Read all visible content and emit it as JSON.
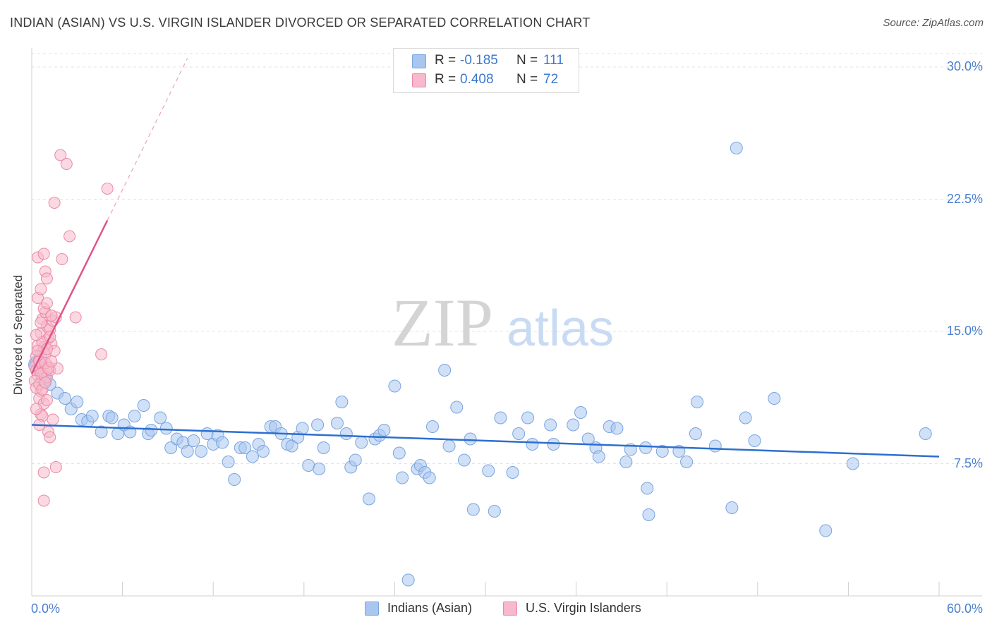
{
  "header": {
    "title": "INDIAN (ASIAN) VS U.S. VIRGIN ISLANDER DIVORCED OR SEPARATED CORRELATION CHART",
    "source": "Source: ZipAtlas.com"
  },
  "stats_box": {
    "rows": [
      {
        "r_label": "R =",
        "r_value": "-0.185",
        "n_label": "N =",
        "n_value": "111",
        "color": "#a9c6f0",
        "border": "#7aa5e0"
      },
      {
        "r_label": "R =",
        "r_value": "0.408",
        "n_label": "N =",
        "n_value": "72",
        "color": "#f7b9cb",
        "border": "#ea8aa8"
      }
    ]
  },
  "watermark": {
    "part1": "ZIP",
    "part2": "atlas"
  },
  "legend": {
    "items": [
      {
        "label": "Indians (Asian)",
        "color": "#a9c6f0",
        "border": "#7aa5e0"
      },
      {
        "label": "U.S. Virgin Islanders",
        "color": "#f7b9cb",
        "border": "#ea8aa8"
      }
    ]
  },
  "chart_data": {
    "type": "scatter",
    "title": "INDIAN (ASIAN) VS U.S. VIRGIN ISLANDER DIVORCED OR SEPARATED CORRELATION CHART",
    "xlabel": "",
    "ylabel": "Divorced or Separated",
    "xlim": [
      0,
      60
    ],
    "ylim": [
      0,
      31
    ],
    "x_tick_labels": [
      "0.0%",
      "60.0%"
    ],
    "y_ticks": [
      7.5,
      15.0,
      22.5,
      30.0
    ],
    "y_tick_labels": [
      "7.5%",
      "15.0%",
      "22.5%",
      "30.0%"
    ],
    "grid": true,
    "legend_position": "bottom-center",
    "series": [
      {
        "name": "Indians (Asian)",
        "color": "#a9c6f0",
        "border": "#7aa5e0",
        "line_color": "#2c6fd0",
        "trend": {
          "x": [
            0,
            60
          ],
          "y": [
            9.7,
            7.9
          ]
        },
        "points": [
          [
            0.3,
            13.2
          ],
          [
            0.6,
            13.7
          ],
          [
            0.9,
            12.4
          ],
          [
            1.2,
            12.0
          ],
          [
            1.7,
            11.5
          ],
          [
            2.2,
            11.2
          ],
          [
            2.6,
            10.6
          ],
          [
            3.0,
            11.0
          ],
          [
            3.3,
            10.0
          ],
          [
            3.7,
            9.9
          ],
          [
            4.0,
            10.2
          ],
          [
            4.6,
            9.3
          ],
          [
            5.1,
            10.2
          ],
          [
            5.3,
            10.1
          ],
          [
            5.7,
            9.2
          ],
          [
            6.1,
            9.7
          ],
          [
            6.5,
            9.3
          ],
          [
            6.8,
            10.2
          ],
          [
            7.4,
            10.8
          ],
          [
            7.7,
            9.2
          ],
          [
            7.9,
            9.4
          ],
          [
            8.5,
            10.1
          ],
          [
            8.9,
            9.5
          ],
          [
            9.2,
            8.4
          ],
          [
            9.6,
            8.9
          ],
          [
            10.0,
            8.7
          ],
          [
            10.3,
            8.2
          ],
          [
            10.7,
            8.8
          ],
          [
            11.2,
            8.2
          ],
          [
            11.6,
            9.2
          ],
          [
            12.0,
            8.6
          ],
          [
            12.3,
            9.1
          ],
          [
            12.6,
            8.7
          ],
          [
            13.0,
            7.6
          ],
          [
            13.4,
            6.6
          ],
          [
            13.8,
            8.4
          ],
          [
            14.1,
            8.4
          ],
          [
            14.6,
            7.9
          ],
          [
            15.0,
            8.6
          ],
          [
            15.3,
            8.2
          ],
          [
            15.8,
            9.6
          ],
          [
            16.1,
            9.6
          ],
          [
            16.5,
            9.2
          ],
          [
            16.9,
            8.6
          ],
          [
            17.2,
            8.5
          ],
          [
            17.6,
            9.0
          ],
          [
            17.9,
            9.5
          ],
          [
            18.3,
            7.4
          ],
          [
            18.9,
            9.7
          ],
          [
            19.0,
            7.2
          ],
          [
            19.3,
            8.4
          ],
          [
            20.2,
            9.8
          ],
          [
            20.5,
            11.0
          ],
          [
            20.8,
            9.2
          ],
          [
            21.1,
            7.3
          ],
          [
            21.4,
            7.7
          ],
          [
            21.8,
            8.7
          ],
          [
            22.3,
            5.5
          ],
          [
            22.7,
            8.9
          ],
          [
            23.0,
            9.1
          ],
          [
            23.3,
            9.4
          ],
          [
            24.0,
            11.9
          ],
          [
            24.3,
            8.1
          ],
          [
            24.5,
            6.7
          ],
          [
            25.5,
            7.2
          ],
          [
            25.7,
            7.4
          ],
          [
            26.0,
            7.0
          ],
          [
            26.3,
            6.7
          ],
          [
            26.5,
            9.6
          ],
          [
            27.3,
            12.8
          ],
          [
            27.6,
            8.5
          ],
          [
            28.1,
            10.7
          ],
          [
            28.6,
            7.7
          ],
          [
            29.0,
            8.9
          ],
          [
            29.2,
            4.9
          ],
          [
            30.2,
            7.1
          ],
          [
            30.6,
            4.8
          ],
          [
            31.0,
            10.1
          ],
          [
            31.8,
            7.0
          ],
          [
            32.2,
            9.2
          ],
          [
            32.8,
            10.1
          ],
          [
            33.1,
            8.6
          ],
          [
            34.3,
            9.7
          ],
          [
            34.5,
            8.6
          ],
          [
            35.8,
            9.7
          ],
          [
            36.3,
            10.4
          ],
          [
            36.8,
            8.9
          ],
          [
            37.3,
            8.4
          ],
          [
            37.5,
            7.9
          ],
          [
            38.2,
            9.6
          ],
          [
            38.7,
            9.5
          ],
          [
            39.3,
            7.6
          ],
          [
            39.6,
            8.3
          ],
          [
            40.6,
            8.4
          ],
          [
            40.7,
            6.1
          ],
          [
            40.8,
            4.6
          ],
          [
            41.7,
            8.2
          ],
          [
            42.8,
            8.2
          ],
          [
            43.3,
            7.6
          ],
          [
            43.9,
            9.2
          ],
          [
            44.0,
            11.0
          ],
          [
            45.2,
            8.5
          ],
          [
            46.3,
            5.0
          ],
          [
            46.6,
            25.4
          ],
          [
            47.2,
            10.1
          ],
          [
            47.8,
            8.8
          ],
          [
            49.1,
            11.2
          ],
          [
            52.5,
            3.7
          ],
          [
            54.3,
            7.5
          ],
          [
            59.1,
            9.2
          ],
          [
            24.9,
            0.9
          ]
        ]
      },
      {
        "name": "U.S. Virgin Islanders",
        "color": "#f7b9cb",
        "border": "#ea8aa8",
        "line_color": "#e0528a",
        "trend": {
          "x": [
            0,
            5.0
          ],
          "y": [
            12.6,
            21.3
          ]
        },
        "trend_dashed": {
          "x": [
            5.0,
            10.3
          ],
          "y": [
            21.3,
            30.5
          ]
        },
        "points": [
          [
            0.2,
            13.0
          ],
          [
            0.3,
            12.8
          ],
          [
            0.3,
            13.6
          ],
          [
            0.4,
            12.5
          ],
          [
            0.4,
            14.2
          ],
          [
            0.5,
            13.4
          ],
          [
            0.5,
            12.9
          ],
          [
            0.6,
            14.9
          ],
          [
            0.6,
            11.6
          ],
          [
            0.7,
            13.1
          ],
          [
            0.7,
            15.7
          ],
          [
            0.8,
            14.1
          ],
          [
            0.8,
            12.7
          ],
          [
            0.9,
            16.1
          ],
          [
            0.9,
            13.7
          ],
          [
            1.0,
            15.3
          ],
          [
            1.0,
            12.4
          ],
          [
            1.1,
            14.6
          ],
          [
            1.1,
            13.0
          ],
          [
            1.2,
            15.1
          ],
          [
            1.2,
            12.8
          ],
          [
            1.3,
            14.3
          ],
          [
            1.4,
            15.6
          ],
          [
            1.5,
            13.9
          ],
          [
            1.6,
            15.8
          ],
          [
            1.7,
            12.9
          ],
          [
            0.4,
            19.2
          ],
          [
            0.8,
            19.4
          ],
          [
            0.9,
            18.4
          ],
          [
            1.0,
            18.0
          ],
          [
            1.5,
            22.3
          ],
          [
            1.9,
            25.0
          ],
          [
            2.3,
            24.5
          ],
          [
            2.5,
            20.4
          ],
          [
            2.0,
            19.1
          ],
          [
            0.5,
            11.2
          ],
          [
            0.6,
            10.3
          ],
          [
            0.7,
            10.2
          ],
          [
            0.8,
            10.9
          ],
          [
            1.1,
            9.3
          ],
          [
            1.2,
            9.0
          ],
          [
            1.4,
            10.0
          ],
          [
            0.8,
            7.0
          ],
          [
            1.6,
            7.3
          ],
          [
            0.8,
            5.4
          ],
          [
            2.9,
            15.8
          ],
          [
            4.6,
            13.7
          ],
          [
            5.0,
            23.1
          ],
          [
            0.5,
            13.3
          ],
          [
            0.6,
            12.6
          ],
          [
            0.7,
            14.4
          ],
          [
            0.9,
            13.2
          ],
          [
            1.0,
            14.0
          ],
          [
            1.1,
            12.9
          ],
          [
            1.2,
            14.7
          ],
          [
            1.3,
            13.3
          ],
          [
            0.3,
            14.8
          ],
          [
            0.4,
            13.9
          ],
          [
            0.6,
            15.5
          ],
          [
            0.8,
            16.3
          ],
          [
            1.0,
            16.6
          ],
          [
            1.3,
            15.9
          ],
          [
            0.2,
            12.2
          ],
          [
            0.3,
            11.8
          ],
          [
            0.5,
            12.0
          ],
          [
            0.7,
            11.7
          ],
          [
            0.9,
            12.1
          ],
          [
            1.0,
            11.1
          ],
          [
            0.3,
            10.6
          ],
          [
            0.4,
            16.9
          ],
          [
            0.6,
            17.4
          ],
          [
            0.5,
            9.7
          ]
        ]
      }
    ]
  }
}
